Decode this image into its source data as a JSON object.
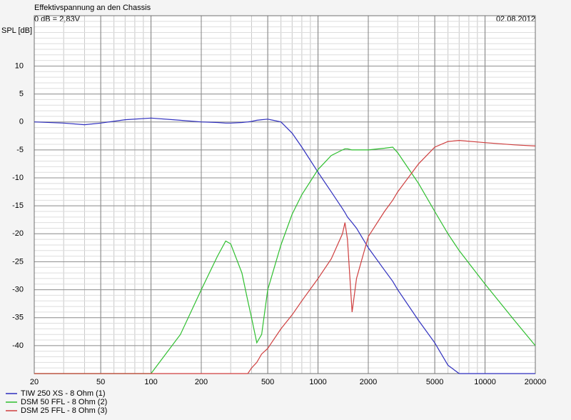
{
  "chart_data": {
    "type": "line",
    "title": "Effektivspannung an den Chassis",
    "subtitle": "0 dB = 2,83V",
    "date": "02.08.2012",
    "y_label": "SPL [dB]",
    "log_x": true,
    "grid": true,
    "legend": "bottom-left",
    "x": [
      20,
      30,
      40,
      50,
      70,
      100,
      150,
      200,
      250,
      280,
      300,
      350,
      380,
      400,
      430,
      460,
      500,
      600,
      700,
      800,
      1000,
      1200,
      1400,
      1450,
      1500,
      1600,
      1700,
      2000,
      2500,
      2800,
      3000,
      4000,
      5000,
      6000,
      7000,
      10000,
      15000,
      20000
    ],
    "xlim": [
      20,
      20000
    ],
    "xticks": [
      20,
      50,
      100,
      200,
      500,
      1000,
      2000,
      5000,
      10000,
      20000
    ],
    "ylim": [
      -45,
      19
    ],
    "yticks": [
      10,
      5,
      0,
      -5,
      -10,
      -15,
      -20,
      -25,
      -30,
      -35,
      -40
    ],
    "series": [
      {
        "name": "TIW 250 XS - 8 Ohm (1)",
        "color": "#2f2fbf",
        "values": [
          0,
          -0.2,
          -0.5,
          -0.2,
          0.4,
          0.7,
          0.3,
          0,
          -0.1,
          -0.2,
          -0.2,
          -0.1,
          0,
          0.1,
          0.3,
          0.4,
          0.5,
          0,
          -2,
          -4.5,
          -9,
          -12.5,
          -15.5,
          -16.2,
          -17,
          -18,
          -19,
          -22.5,
          -26.5,
          -28.5,
          -30,
          -35.5,
          -39.5,
          -43.5,
          -45,
          -45,
          -45,
          -45
        ]
      },
      {
        "name": "DSM 50 FFL - 8 Ohm (2)",
        "color": "#2fbf2f",
        "values": [
          -45,
          -45,
          -45,
          -45,
          -45,
          -45,
          -38,
          -30,
          -24,
          -21.3,
          -21.8,
          -27,
          -32,
          -35,
          -39.5,
          -38,
          -30,
          -22,
          -16.5,
          -13,
          -8.5,
          -6,
          -5,
          -4.8,
          -4.8,
          -5,
          -5,
          -5,
          -4.7,
          -4.5,
          -5.5,
          -11,
          -16,
          -20,
          -23,
          -29,
          -35.5,
          -40
        ]
      },
      {
        "name": "DSM 25 FFL - 8 Ohm (3)",
        "color": "#cf3f3f",
        "values": [
          -45,
          -45,
          -45,
          -45,
          -45,
          -45,
          -45,
          -45,
          -45,
          -45,
          -45,
          -45,
          -45,
          -44,
          -43,
          -41.5,
          -40.5,
          -37,
          -34.5,
          -32,
          -28,
          -24.5,
          -20,
          -18,
          -21,
          -34,
          -28,
          -20.5,
          -16,
          -14,
          -12.5,
          -7.5,
          -4.5,
          -3.5,
          -3.3,
          -3.7,
          -4.1,
          -4.3
        ]
      }
    ]
  }
}
